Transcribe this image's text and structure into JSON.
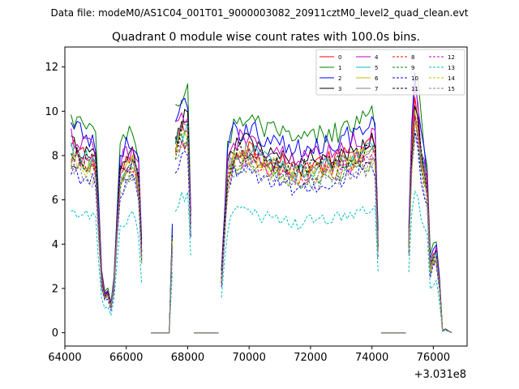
{
  "suptitle": "Data file: modeM0/AS1C04_001T01_9000003082_20911cztM0_level2_quad_clean.evt",
  "chart_data": {
    "type": "line",
    "title": "Quadrant 0 module wise count rates with 100.0s bins.",
    "xlabel": "",
    "ylabel": "",
    "x_offset_label": "+3.031e8",
    "xlim": [
      64000,
      77100
    ],
    "ylim": [
      -0.6,
      12.9
    ],
    "x_ticks": [
      64000,
      66000,
      68000,
      70000,
      72000,
      74000,
      76000
    ],
    "x_tick_labels": [
      "64000",
      "66000",
      "68000",
      "70000",
      "72000",
      "74000",
      "76000"
    ],
    "y_ticks": [
      0,
      2,
      4,
      6,
      8,
      10,
      12
    ],
    "y_tick_labels": [
      "0",
      "2",
      "4",
      "6",
      "8",
      "10",
      "12"
    ],
    "grid": false,
    "legend_position": "top-right",
    "time_segments": [
      {
        "start": 64200,
        "end": 66500
      },
      {
        "start": 66800,
        "end": 67500
      },
      {
        "start": 67600,
        "end": 68100
      },
      {
        "start": 68200,
        "end": 69000
      },
      {
        "start": 69100,
        "end": 74200
      },
      {
        "start": 74300,
        "end": 75100
      },
      {
        "start": 75200,
        "end": 76600
      }
    ],
    "base_profile": [
      [
        64200,
        8.3
      ],
      [
        64500,
        8.1
      ],
      [
        64800,
        7.9
      ],
      [
        65000,
        7.6
      ],
      [
        65200,
        2.4
      ],
      [
        65300,
        1.6
      ],
      [
        65400,
        1.8
      ],
      [
        65500,
        1.2
      ],
      [
        65600,
        2.2
      ],
      [
        65800,
        7.2
      ],
      [
        66200,
        7.9
      ],
      [
        66400,
        6.9
      ],
      [
        66500,
        3.5
      ],
      [
        66600,
        0.1
      ],
      [
        66700,
        0.0
      ],
      [
        67400,
        0.0
      ],
      [
        67600,
        8.6
      ],
      [
        67800,
        9.3
      ],
      [
        68000,
        9.2
      ],
      [
        68100,
        5.0
      ],
      [
        68200,
        0.0
      ],
      [
        69000,
        0.0
      ],
      [
        69300,
        7.2
      ],
      [
        69500,
        8.2
      ],
      [
        70000,
        8.4
      ],
      [
        70500,
        7.9
      ],
      [
        71000,
        7.7
      ],
      [
        71500,
        7.4
      ],
      [
        72000,
        7.6
      ],
      [
        72500,
        7.7
      ],
      [
        73000,
        7.9
      ],
      [
        73500,
        8.1
      ],
      [
        74000,
        8.4
      ],
      [
        74100,
        8.4
      ],
      [
        74200,
        4.0
      ],
      [
        74300,
        0.0
      ],
      [
        75100,
        0.0
      ],
      [
        75300,
        8.2
      ],
      [
        75400,
        10.2
      ],
      [
        75500,
        9.4
      ],
      [
        75600,
        8.1
      ],
      [
        75800,
        6.6
      ],
      [
        75900,
        3.0
      ],
      [
        76000,
        3.4
      ],
      [
        76100,
        3.5
      ],
      [
        76200,
        2.2
      ],
      [
        76300,
        0.1
      ],
      [
        76400,
        0.15
      ],
      [
        76600,
        0.0
      ]
    ],
    "series": [
      {
        "name": "0",
        "color": "#ff0000",
        "dashed": false,
        "scale": 1.0
      },
      {
        "name": "1",
        "color": "#008000",
        "dashed": false,
        "scale": 1.16
      },
      {
        "name": "2",
        "color": "#0000ff",
        "dashed": false,
        "scale": 1.11
      },
      {
        "name": "3",
        "color": "#000000",
        "dashed": false,
        "scale": 1.03
      },
      {
        "name": "4",
        "color": "#bf00bf",
        "dashed": false,
        "scale": 1.06
      },
      {
        "name": "5",
        "color": "#00bfbf",
        "dashed": false,
        "scale": 0.98
      },
      {
        "name": "6",
        "color": "#bfbf00",
        "dashed": false,
        "scale": 0.96
      },
      {
        "name": "7",
        "color": "#808080",
        "dashed": false,
        "scale": 0.97
      },
      {
        "name": "8",
        "color": "#ff0000",
        "dashed": true,
        "scale": 0.94
      },
      {
        "name": "9",
        "color": "#008000",
        "dashed": true,
        "scale": 0.92
      },
      {
        "name": "10",
        "color": "#0000ff",
        "dashed": true,
        "scale": 0.88
      },
      {
        "name": "11",
        "color": "#000000",
        "dashed": true,
        "scale": 0.99
      },
      {
        "name": "12",
        "color": "#bf00bf",
        "dashed": true,
        "scale": 0.95
      },
      {
        "name": "13",
        "color": "#00bfbf",
        "dashed": true,
        "scale": 0.66
      },
      {
        "name": "14",
        "color": "#bfbf00",
        "dashed": true,
        "scale": 0.93
      },
      {
        "name": "15",
        "color": "#808080",
        "dashed": true,
        "scale": 0.9
      }
    ]
  }
}
